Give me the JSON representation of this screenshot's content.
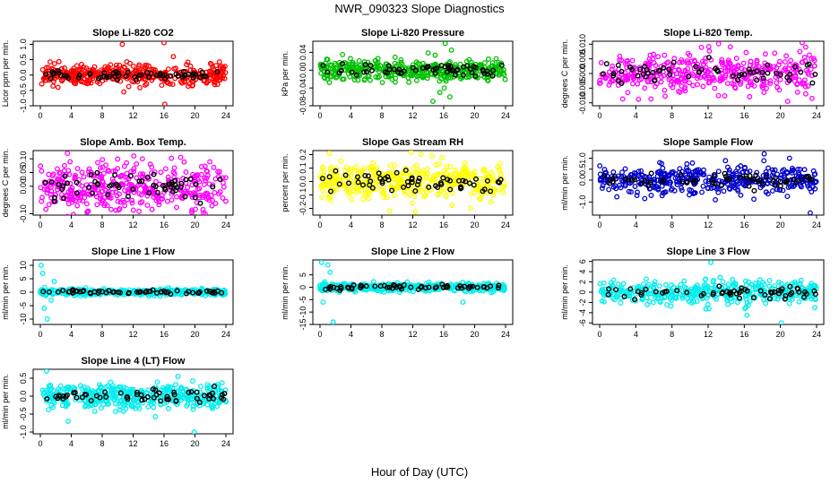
{
  "title": "NWR_090323  Slope Diagnostics",
  "xlabel": "Hour of Day (UTC)",
  "colors": {
    "highlight": "#000000"
  },
  "chart_data": [
    {
      "type": "scatter",
      "title": "Slope Li-820 CO2",
      "ylabel": "Licor ppm per min.",
      "color": "#ff0000",
      "xlim": [
        0,
        24
      ],
      "ylim": [
        -1.0,
        1.1
      ],
      "xticks": [
        "0",
        "4",
        "8",
        "12",
        "16",
        "20",
        "24"
      ],
      "yticks": [
        "-1.0",
        "-0.5",
        "0.0",
        "0.5",
        "1.0"
      ],
      "n_points": 400,
      "spread": 0.16,
      "outliers": [
        [
          10.6,
          1.0
        ],
        [
          16.0,
          1.05
        ],
        [
          16.1,
          -0.95
        ],
        [
          17.2,
          0.6
        ],
        [
          10.8,
          -0.55
        ]
      ]
    },
    {
      "type": "scatter",
      "title": "Slope Li-820 Pressure",
      "ylabel": "kPa per min.",
      "color": "#00c000",
      "xlim": [
        0,
        24
      ],
      "ylim": [
        -0.08,
        0.065
      ],
      "xticks": [
        "0",
        "4",
        "8",
        "12",
        "16",
        "20",
        "24"
      ],
      "yticks": [
        "-0.08",
        "-0.04",
        "0.00",
        "0.04"
      ],
      "n_points": 400,
      "spread": 0.012,
      "outliers": [
        [
          16.2,
          0.06
        ],
        [
          14.6,
          -0.07
        ],
        [
          15.5,
          -0.05
        ],
        [
          16.8,
          -0.06
        ],
        [
          17.0,
          0.045
        ]
      ]
    },
    {
      "type": "scatter",
      "title": "Slope Li-820 Temp.",
      "ylabel": "degrees C per min.",
      "color": "#ff00ff",
      "xlim": [
        0,
        24
      ],
      "ylim": [
        -0.011,
        0.011
      ],
      "xticks": [
        "0",
        "4",
        "8",
        "12",
        "16",
        "20",
        "24"
      ],
      "yticks": [
        "-0.010",
        "-0.005",
        "0.000",
        "0.005",
        "0.010"
      ],
      "n_points": 400,
      "spread": 0.0035,
      "outliers": [
        [
          22.4,
          0.0105
        ],
        [
          20.8,
          -0.0095
        ],
        [
          23.5,
          -0.0085
        ],
        [
          22.8,
          0.009
        ]
      ]
    },
    {
      "type": "scatter",
      "title": "Slope Amb. Box Temp.",
      "ylabel": "degrees C per min.",
      "color": "#ff00ff",
      "xlim": [
        0,
        24
      ],
      "ylim": [
        -0.105,
        0.13
      ],
      "xticks": [
        "0",
        "4",
        "8",
        "12",
        "16",
        "20",
        "24"
      ],
      "yticks": [
        "-0.10",
        "0.00",
        "0.05",
        "0.10"
      ],
      "n_points": 400,
      "spread": 0.045,
      "outliers": [
        [
          3.5,
          0.12
        ],
        [
          13.2,
          0.1
        ],
        [
          19.6,
          -0.095
        ],
        [
          6.2,
          -0.09
        ]
      ]
    },
    {
      "type": "scatter",
      "title": "Slope Gas Stream RH",
      "ylabel": "percent per min.",
      "color": "#ffff00",
      "xlim": [
        0,
        24
      ],
      "ylim": [
        -0.25,
        0.23
      ],
      "xticks": [
        "0",
        "4",
        "8",
        "12",
        "16",
        "20",
        "24"
      ],
      "yticks": [
        "-0.2",
        "-0.1",
        "0.0",
        "0.1",
        "0.2"
      ],
      "n_points": 400,
      "spread": 0.07,
      "outliers": [
        [
          1.2,
          0.21
        ],
        [
          9.0,
          -0.22
        ],
        [
          19.5,
          -0.2
        ],
        [
          14.5,
          0.19
        ]
      ]
    },
    {
      "type": "scatter",
      "title": "Slope Sample Flow",
      "ylabel": "ml/min per min.",
      "color": "#0000cd",
      "xlim": [
        0,
        24
      ],
      "ylim": [
        -1.6,
        1.35
      ],
      "xticks": [
        "0",
        "4",
        "8",
        "12",
        "16",
        "20",
        "24"
      ],
      "yticks": [
        "-1.0",
        "0.0",
        "0.5",
        "1.0"
      ],
      "n_points": 400,
      "spread": 0.3,
      "outliers": [
        [
          23.3,
          -1.5
        ],
        [
          18.2,
          1.2
        ],
        [
          21.0,
          1.0
        ],
        [
          12.8,
          -0.9
        ]
      ]
    },
    {
      "type": "scatter",
      "title": "Slope Line 1 Flow",
      "ylabel": "ml/min per min.",
      "color": "#00eeee",
      "xlim": [
        0,
        24
      ],
      "ylim": [
        -12,
        12
      ],
      "xticks": [
        "0",
        "4",
        "8",
        "12",
        "16",
        "20",
        "24"
      ],
      "yticks": [
        "-10",
        "-5",
        "0",
        "5",
        "10"
      ],
      "n_points": 400,
      "spread": 0.6,
      "outliers": [
        [
          0.1,
          10
        ],
        [
          0.3,
          7
        ],
        [
          0.9,
          -10
        ],
        [
          0.5,
          -6
        ],
        [
          1.4,
          -3
        ],
        [
          1.8,
          4
        ]
      ]
    },
    {
      "type": "scatter",
      "title": "Slope Line 2 Flow",
      "ylabel": "ml/min per min.",
      "color": "#00eeee",
      "xlim": [
        0,
        24
      ],
      "ylim": [
        -15,
        11
      ],
      "xticks": [
        "0",
        "4",
        "8",
        "12",
        "16",
        "20",
        "24"
      ],
      "yticks": [
        "-15",
        "-10",
        "-5",
        "0",
        "5"
      ],
      "n_points": 400,
      "spread": 0.8,
      "outliers": [
        [
          0.2,
          10
        ],
        [
          1.0,
          9
        ],
        [
          0.4,
          -6
        ],
        [
          1.7,
          -14
        ],
        [
          1.3,
          6
        ],
        [
          18.5,
          -6
        ]
      ]
    },
    {
      "type": "scatter",
      "title": "Slope Line 3 Flow",
      "ylabel": "ml/min per min.",
      "color": "#00eeee",
      "xlim": [
        0,
        24
      ],
      "ylim": [
        -6.3,
        6.3
      ],
      "xticks": [
        "0",
        "4",
        "8",
        "12",
        "16",
        "20",
        "24"
      ],
      "yticks": [
        "-6",
        "-4",
        "-2",
        "0",
        "2",
        "4",
        "6"
      ],
      "n_points": 400,
      "spread": 1.1,
      "outliers": [
        [
          12.3,
          5.8
        ],
        [
          20.1,
          -6.0
        ],
        [
          12.1,
          -3.2
        ],
        [
          16.3,
          -4.5
        ],
        [
          23.8,
          -3.0
        ]
      ]
    },
    {
      "type": "scatter",
      "title": "Slope Line 4 (LT) Flow",
      "ylabel": "ml/min per min.",
      "color": "#00eeee",
      "xlim": [
        0,
        24
      ],
      "ylim": [
        -1.05,
        0.75
      ],
      "xticks": [
        "0",
        "4",
        "8",
        "12",
        "16",
        "20",
        "24"
      ],
      "yticks": [
        "-1.0",
        "-0.5",
        "0.0",
        "0.5"
      ],
      "n_points": 400,
      "spread": 0.17,
      "outliers": [
        [
          0.8,
          0.7
        ],
        [
          19.9,
          -1.0
        ],
        [
          3.6,
          -0.7
        ],
        [
          17.8,
          0.55
        ]
      ]
    }
  ]
}
